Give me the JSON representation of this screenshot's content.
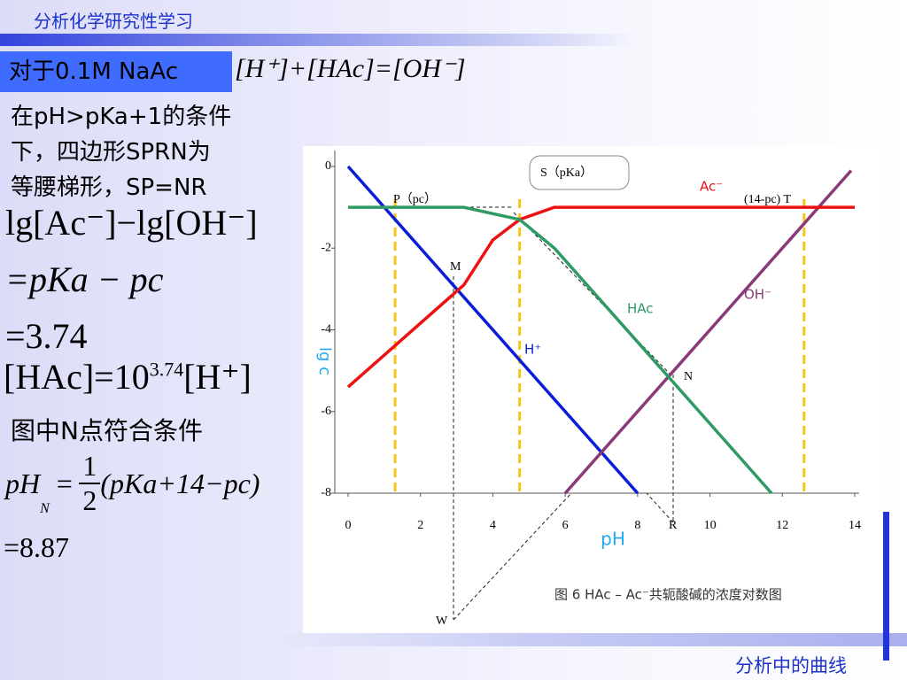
{
  "header": {
    "title": "分析化学研究性学习"
  },
  "footer": {
    "text": "分析中的曲线"
  },
  "condition_box": "对于0.1M NaAc",
  "balance_equation": "[H⁺]+[HAc]=[OH⁻]",
  "body": {
    "lines": [
      "在pH>pKa+1的条件",
      "下，四边形SPRN为",
      "等腰梯形，SP=NR"
    ],
    "formula_1": "lg[Ac⁻]−lg[OH⁻]",
    "formula_2": "=pKa − pc",
    "formula_3": "=3.74",
    "formula_4": {
      "left": "[HAc]=10",
      "exponent": "3.74",
      "right": "[H⁺]"
    },
    "note": "图中N点符合条件",
    "formula_5": {
      "left": "pH",
      "subscript": "N",
      "equals": "=",
      "numerator": "1",
      "denominator": "2",
      "right": "(pKa+14−pc)"
    },
    "result": "=8.87"
  },
  "chart_data": {
    "type": "line",
    "caption": "图 6  HAc – Ac⁻共轭酸碱的浓度对数图",
    "x_label": "pH",
    "y_label": "lg c",
    "xlim": [
      0,
      14
    ],
    "ylim": [
      -8,
      0
    ],
    "xticks": [
      0,
      2,
      4,
      6,
      8,
      10,
      12,
      14
    ],
    "yticks": [
      0,
      -2,
      -4,
      -6,
      -8
    ],
    "series": [
      {
        "name": "H⁺",
        "color": "#0a1ed6",
        "x": [
          0,
          8
        ],
        "values": [
          0,
          -8
        ]
      },
      {
        "name": "OH⁻",
        "color": "#8b3a78",
        "x": [
          6,
          13.9
        ],
        "values": [
          -8,
          -0.1
        ]
      },
      {
        "name": "Ac⁻",
        "color": "#ee1111",
        "x": [
          0,
          3.2,
          4.0,
          4.74,
          5.7,
          14
        ],
        "values": [
          -5.4,
          -2.9,
          -1.8,
          -1.3,
          -1,
          -1
        ]
      },
      {
        "name": "HAc",
        "color": "#2e9a64",
        "x": [
          0,
          3.2,
          4.74,
          5.7,
          11.7
        ],
        "values": [
          -1,
          -1,
          -1.3,
          -2,
          -8
        ]
      }
    ],
    "reference_lines": {
      "color": "#f5c518",
      "x": [
        1.3,
        4.74,
        12.6
      ]
    },
    "annotations": [
      "P（pc）",
      "S（pKa）",
      "(14-pc) T",
      "M",
      "N",
      "R",
      "W"
    ]
  }
}
